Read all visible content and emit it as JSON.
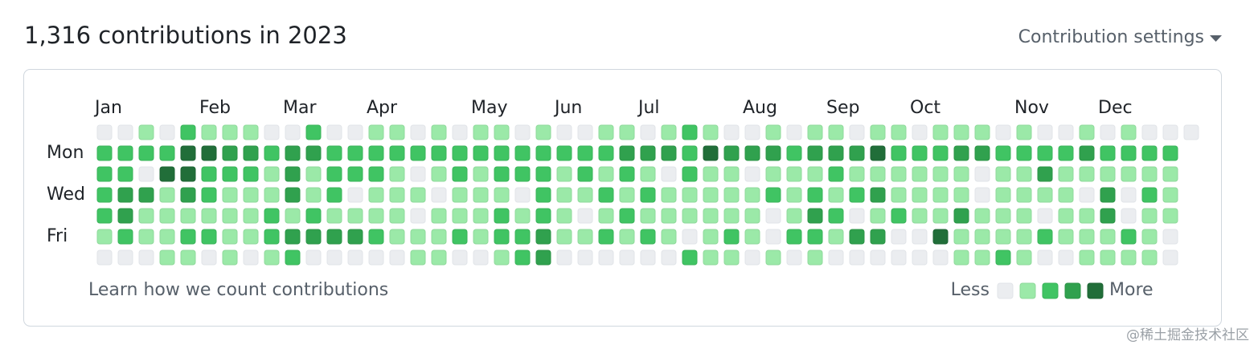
{
  "header": {
    "title": "1,316 contributions in 2023",
    "settings": "Contribution settings"
  },
  "graph": {
    "months": [
      "Jan",
      "Feb",
      "Mar",
      "Apr",
      "May",
      "Jun",
      "Jul",
      "Aug",
      "Sep",
      "Oct",
      "Nov",
      "Dec"
    ],
    "weekdays": [
      "Mon",
      "Wed",
      "Fri"
    ],
    "colors": [
      "#ebedf0",
      "#9be9a8",
      "#40c463",
      "#30a14e",
      "#216e39"
    ],
    "levels": [
      [
        0,
        0,
        1,
        0,
        2,
        1,
        1,
        1,
        0,
        0,
        2,
        0,
        0,
        1,
        1,
        0,
        1,
        0,
        1,
        1,
        0,
        1,
        0,
        0,
        1,
        1,
        0,
        1,
        2,
        1,
        0,
        0,
        1,
        0,
        1,
        1,
        0,
        1,
        1,
        0,
        1,
        1,
        1,
        0,
        1,
        0,
        0,
        1,
        0,
        1,
        0,
        0,
        0
      ],
      [
        2,
        2,
        2,
        2,
        4,
        4,
        3,
        3,
        2,
        3,
        3,
        2,
        2,
        2,
        2,
        2,
        2,
        2,
        2,
        2,
        2,
        2,
        2,
        2,
        2,
        3,
        3,
        3,
        2,
        4,
        3,
        3,
        3,
        2,
        3,
        3,
        3,
        4,
        2,
        2,
        2,
        3,
        3,
        2,
        2,
        2,
        2,
        3,
        2,
        2,
        2,
        2
      ],
      [
        2,
        2,
        0,
        4,
        4,
        2,
        2,
        2,
        1,
        3,
        1,
        2,
        2,
        2,
        1,
        0,
        1,
        2,
        1,
        2,
        2,
        2,
        1,
        2,
        1,
        2,
        1,
        0,
        2,
        1,
        1,
        0,
        1,
        1,
        1,
        2,
        1,
        1,
        1,
        1,
        1,
        1,
        0,
        1,
        1,
        3,
        1,
        1,
        1,
        1,
        1,
        1
      ],
      [
        2,
        3,
        3,
        1,
        3,
        2,
        1,
        1,
        1,
        3,
        1,
        2,
        0,
        1,
        1,
        1,
        0,
        1,
        1,
        1,
        0,
        2,
        1,
        1,
        2,
        1,
        2,
        1,
        1,
        1,
        1,
        1,
        2,
        1,
        2,
        1,
        2,
        3,
        1,
        1,
        1,
        1,
        0,
        1,
        1,
        1,
        1,
        0,
        3,
        0,
        2,
        1
      ],
      [
        2,
        3,
        1,
        1,
        1,
        1,
        1,
        1,
        2,
        1,
        2,
        1,
        1,
        1,
        1,
        0,
        1,
        1,
        1,
        2,
        1,
        2,
        1,
        0,
        1,
        2,
        1,
        1,
        1,
        1,
        1,
        1,
        0,
        1,
        3,
        2,
        0,
        1,
        2,
        1,
        1,
        3,
        1,
        1,
        1,
        0,
        1,
        1,
        3,
        0,
        1,
        1
      ],
      [
        1,
        2,
        1,
        1,
        2,
        2,
        1,
        1,
        2,
        3,
        3,
        3,
        3,
        2,
        1,
        1,
        1,
        2,
        1,
        2,
        2,
        3,
        1,
        1,
        2,
        1,
        2,
        1,
        0,
        1,
        2,
        1,
        0,
        2,
        2,
        1,
        3,
        3,
        0,
        0,
        4,
        1,
        1,
        1,
        1,
        2,
        1,
        1,
        1,
        2,
        1,
        0
      ],
      [
        0,
        0,
        0,
        1,
        1,
        0,
        1,
        0,
        1,
        2,
        0,
        0,
        0,
        0,
        0,
        1,
        1,
        0,
        0,
        1,
        2,
        3,
        0,
        0,
        0,
        0,
        0,
        0,
        2,
        1,
        1,
        0,
        1,
        0,
        1,
        0,
        0,
        0,
        0,
        0,
        0,
        1,
        1,
        2,
        1,
        0,
        0,
        1,
        1,
        1,
        1,
        0
      ]
    ]
  },
  "footer": {
    "link": "Learn how we count contributions",
    "less": "Less",
    "more": "More",
    "legend_levels": [
      0,
      1,
      2,
      3,
      4
    ]
  },
  "watermark": "@稀土掘金技术社区"
}
